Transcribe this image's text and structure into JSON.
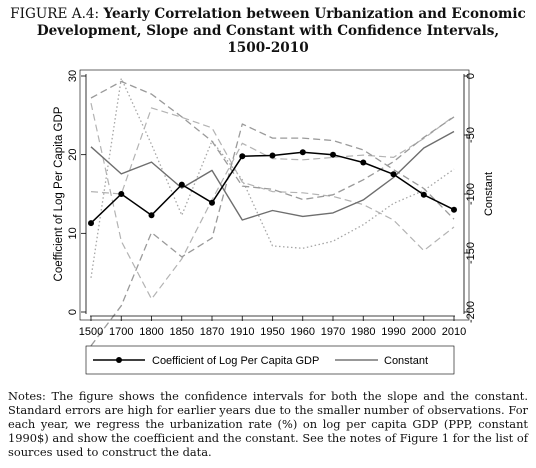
{
  "figure": {
    "label": "FIGURE A.4:",
    "title_lines": [
      "Yearly Correlation between Urbanization and Economic",
      "Development, Slope and Constant with Confidence Intervals,",
      "1500-2010"
    ]
  },
  "chart_data": {
    "type": "line",
    "x_categories": [
      "1500",
      "1700",
      "1800",
      "1850",
      "1870",
      "1910",
      "1950",
      "1960",
      "1970",
      "1980",
      "1990",
      "2000",
      "2010"
    ],
    "left_axis": {
      "label": "Coefficient of Log Per Capita GDP",
      "ylim": [
        0,
        30
      ],
      "ticks": [
        0,
        10,
        20,
        30
      ]
    },
    "right_axis": {
      "label": "Constant",
      "ylim": [
        -200,
        0
      ],
      "ticks": [
        0,
        -50,
        -100,
        -150,
        -200
      ]
    },
    "grid": false,
    "legend_position": "bottom",
    "series": [
      {
        "name": "Coefficient of Log Per Capita GDP",
        "axis": "left",
        "style": "solid-black-markers",
        "values": [
          11.3,
          15.0,
          12.3,
          16.2,
          13.9,
          19.8,
          19.9,
          20.3,
          20.0,
          19.0,
          17.5,
          14.9,
          13.0
        ]
      },
      {
        "axis": "left",
        "style": "dashed-upper-ci",
        "values": [
          27.2,
          29.3,
          27.7,
          24.8,
          21.7,
          16.0,
          15.6,
          14.3,
          14.9,
          16.8,
          19.1,
          22.2,
          24.8
        ]
      },
      {
        "axis": "left",
        "style": "dashed-lower-ci",
        "values": [
          -4.3,
          0.8,
          10.1,
          7.0,
          9.4,
          23.9,
          22.1,
          22.1,
          21.8,
          20.6,
          18.1,
          15.7,
          11.8
        ]
      },
      {
        "name": "Constant",
        "axis": "right",
        "style": "solid-gray",
        "values": [
          -60,
          -83,
          -73,
          -95,
          -80,
          -122,
          -114,
          -119,
          -116,
          -105,
          -86,
          -61,
          -47
        ]
      },
      {
        "axis": "right",
        "style": "dashed-gray-ci",
        "values": [
          -23,
          -140,
          -189,
          -155,
          -105,
          -57,
          -70,
          -71,
          -69,
          -67,
          -69,
          -53,
          -34
        ]
      },
      {
        "axis": "right",
        "style": "dashed-gray-ci",
        "values": [
          -98,
          -100,
          -27,
          -35,
          -44,
          -90,
          -98,
          -99,
          -102,
          -109,
          -122,
          -148,
          -128
        ]
      },
      {
        "axis": "right",
        "style": "dotted-gray-ci",
        "values": [
          -171,
          -2,
          -58,
          -118,
          -55,
          -88,
          -144,
          -146,
          -140,
          -126,
          -108,
          -97,
          -79
        ]
      }
    ]
  },
  "notes": "Notes: The figure shows the confidence intervals for both the slope and the constant. Standard errors are high for earlier years due to the smaller number of observations. For each year, we regress the urbanization rate (%) on log per capita GDP (PPP, constant 1990$) and show the coefficient and the constant. See the notes of Figure 1 for the list of sources used to construct the data."
}
